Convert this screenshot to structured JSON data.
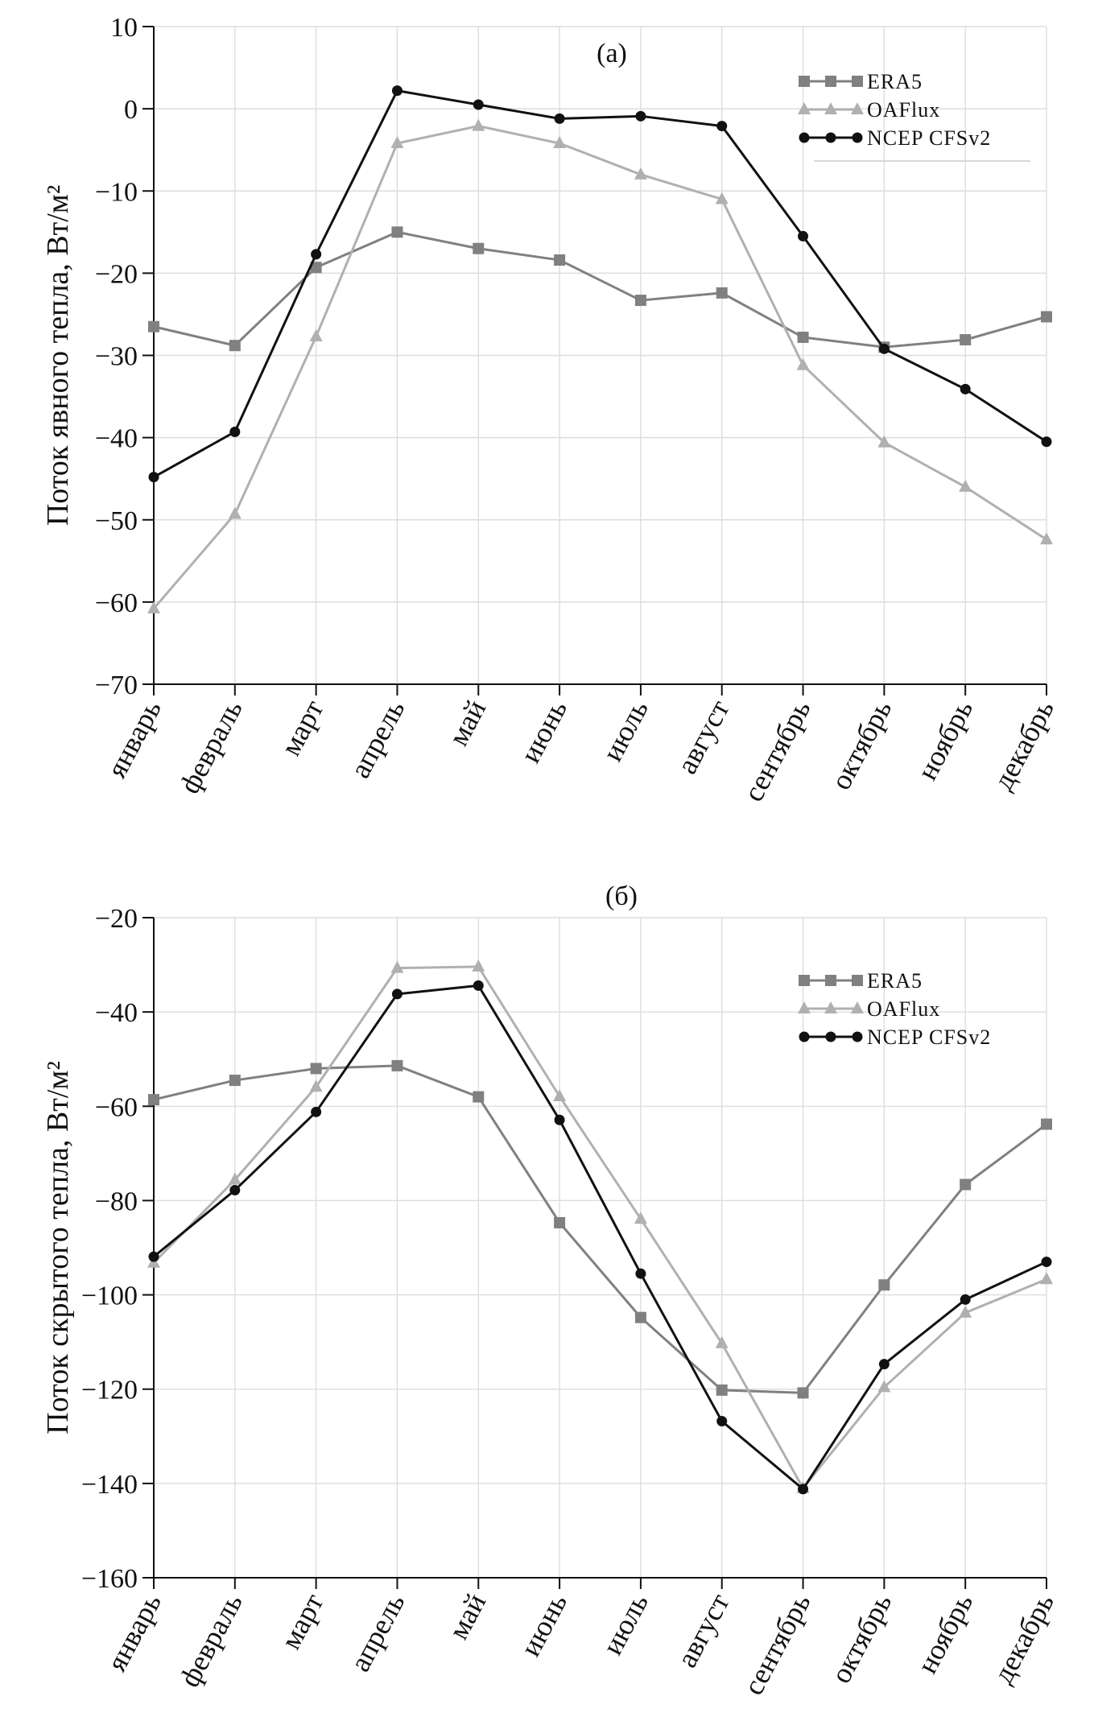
{
  "chart_data": [
    {
      "type": "line",
      "panel_label": "(а)",
      "ylabel": "Поток явного тепла, Вт/м²",
      "xlabel": "",
      "ylim": [
        -70,
        10
      ],
      "yticks": [
        10,
        0,
        -10,
        -20,
        -30,
        -40,
        -50,
        -60,
        -70
      ],
      "ytick_labels": [
        "10",
        "0",
        "−10",
        "−20",
        "−30",
        "−40",
        "−50",
        "−60",
        "−70"
      ],
      "categories": [
        "январь",
        "февраль",
        "март",
        "апрель",
        "май",
        "июнь",
        "июль",
        "август",
        "сентябрь",
        "октябрь",
        "ноябрь",
        "декабрь"
      ],
      "grid": true,
      "legend_position": "top-right",
      "series": [
        {
          "name": "ERA5",
          "marker": "square",
          "color": "#808080",
          "values": [
            -26.5,
            -28.8,
            -19.3,
            -15.0,
            -17.0,
            -18.4,
            -23.3,
            -22.4,
            -27.8,
            -29.0,
            -28.1,
            -25.3
          ]
        },
        {
          "name": "OAFlux",
          "marker": "triangle",
          "color": "#b0b0b0",
          "values": [
            -60.8,
            -49.3,
            -27.7,
            -4.2,
            -2.1,
            -4.2,
            -8.0,
            -11.0,
            -31.2,
            -40.6,
            -46.0,
            -52.4
          ]
        },
        {
          "name": "NCEP CFSv2",
          "marker": "circle",
          "color": "#111111",
          "values": [
            -44.8,
            -39.3,
            -17.7,
            2.2,
            0.5,
            -1.2,
            -0.9,
            -2.1,
            -15.5,
            -29.2,
            -34.1,
            -40.5
          ]
        }
      ]
    },
    {
      "type": "line",
      "panel_label": "(б)",
      "ylabel": "Поток скрытого тепла, Вт/м²",
      "xlabel": "",
      "ylim": [
        -160,
        -20
      ],
      "yticks": [
        -20,
        -40,
        -60,
        -80,
        -100,
        -120,
        -140,
        -160
      ],
      "ytick_labels": [
        "−20",
        "−40",
        "−60",
        "−80",
        "−100",
        "−120",
        "−140",
        "−160"
      ],
      "categories": [
        "январь",
        "февраль",
        "март",
        "апрель",
        "май",
        "июнь",
        "июль",
        "август",
        "сентябрь",
        "октябрь",
        "ноябрь",
        "декабрь"
      ],
      "grid": true,
      "legend_position": "top-right",
      "series": [
        {
          "name": "ERA5",
          "marker": "square",
          "color": "#808080",
          "values": [
            -58.6,
            -54.5,
            -52.0,
            -51.4,
            -58.0,
            -84.7,
            -104.8,
            -120.2,
            -120.8,
            -97.9,
            -76.6,
            -63.8
          ]
        },
        {
          "name": "OAFlux",
          "marker": "triangle",
          "color": "#b0b0b0",
          "values": [
            -93.2,
            -75.6,
            -55.9,
            -30.7,
            -30.4,
            -57.9,
            -83.9,
            -110.3,
            -141.0,
            -119.6,
            -103.8,
            -96.7
          ]
        },
        {
          "name": "NCEP CFSv2",
          "marker": "circle",
          "color": "#111111",
          "values": [
            -91.9,
            -77.8,
            -61.2,
            -36.2,
            -34.4,
            -62.9,
            -95.5,
            -126.8,
            -141.2,
            -114.7,
            -101.0,
            -93.0
          ]
        }
      ]
    }
  ]
}
